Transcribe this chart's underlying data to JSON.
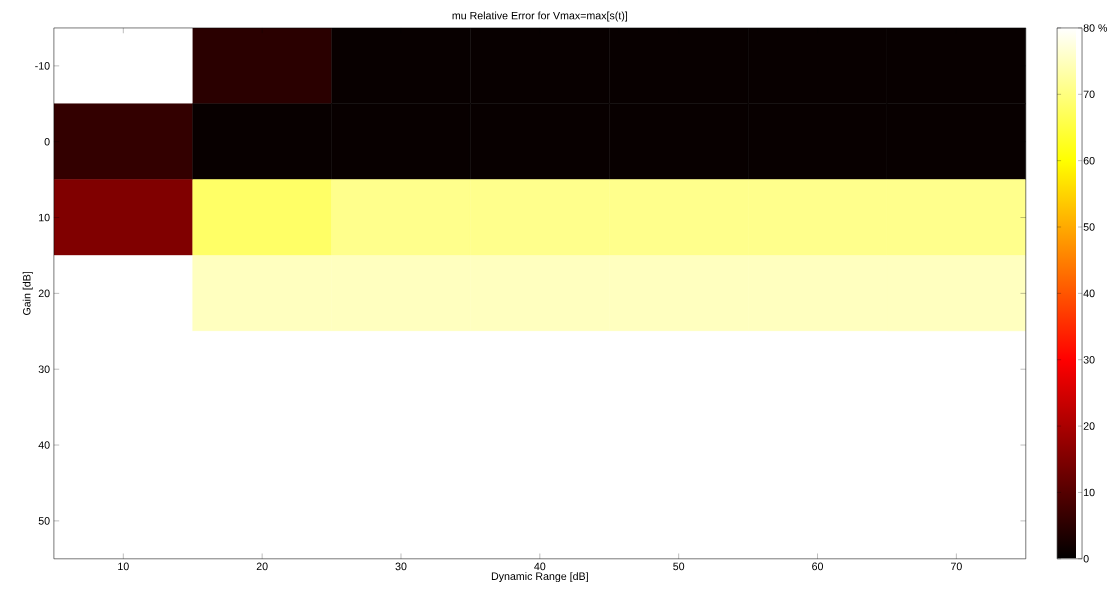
{
  "chart_data": {
    "type": "heatmap",
    "title": "mu Relative Error for Vmax=max[s(t)]",
    "xlabel": "Dynamic Range [dB]",
    "ylabel": "Gain [dB]",
    "categories": [
      "10",
      "20",
      "30",
      "40",
      "50",
      "60",
      "70"
    ],
    "y_categories": [
      "-10",
      "0",
      "10",
      "20",
      "30",
      "40",
      "50"
    ],
    "cells": [
      [
        80,
        5,
        1,
        1,
        1,
        1,
        1
      ],
      [
        6,
        1,
        1,
        1,
        1,
        1,
        1
      ],
      [
        15,
        68,
        71,
        71,
        71,
        71,
        71
      ],
      [
        80,
        75,
        75,
        75,
        75,
        75,
        75
      ],
      [
        80,
        80,
        80,
        80,
        80,
        80,
        80
      ],
      [
        80,
        80,
        80,
        80,
        80,
        80,
        80
      ],
      [
        80,
        80,
        80,
        80,
        80,
        80,
        80
      ]
    ],
    "clim": [
      0,
      80
    ],
    "cticks": [
      0,
      10,
      20,
      30,
      40,
      50,
      60,
      70,
      {
        "value": 80,
        "label": "80 %"
      }
    ]
  }
}
